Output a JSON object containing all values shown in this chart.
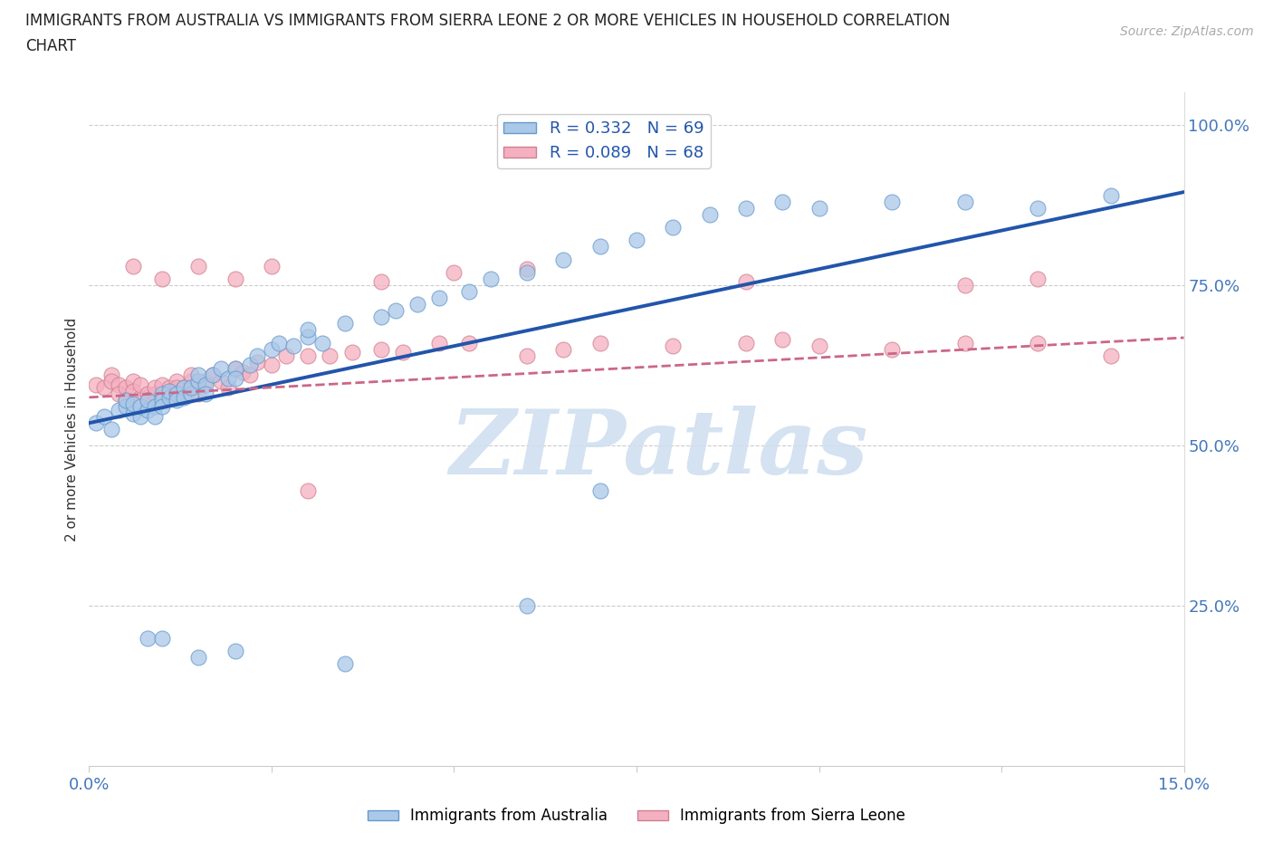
{
  "title_line1": "IMMIGRANTS FROM AUSTRALIA VS IMMIGRANTS FROM SIERRA LEONE 2 OR MORE VEHICLES IN HOUSEHOLD CORRELATION",
  "title_line2": "CHART",
  "source_text": "Source: ZipAtlas.com",
  "ylabel": "2 or more Vehicles in Household",
  "xlim": [
    0.0,
    0.15
  ],
  "ylim": [
    0.0,
    1.05
  ],
  "xticks": [
    0.0,
    0.025,
    0.05,
    0.075,
    0.1,
    0.125,
    0.15
  ],
  "xticklabels": [
    "0.0%",
    "",
    "",
    "",
    "",
    "",
    "15.0%"
  ],
  "yticks_right": [
    0.25,
    0.5,
    0.75,
    1.0
  ],
  "ytickslabels_right": [
    "25.0%",
    "50.0%",
    "75.0%",
    "100.0%"
  ],
  "australia_color": "#aac8e8",
  "australia_edge": "#6699cc",
  "sierraleone_color": "#f4afc0",
  "sierraleone_edge": "#d08090",
  "australia_line_color": "#2255aa",
  "sierraleone_line_color": "#cc6688",
  "watermark": "ZIPatlas",
  "watermark_color": "#d0dff0",
  "grid_color": "#cccccc",
  "background_color": "#ffffff",
  "legend_R_aus": "R = 0.332",
  "legend_N_aus": "N = 69",
  "legend_R_sl": "R = 0.089",
  "legend_N_sl": "N = 68",
  "aus_line_x0": 0.0,
  "aus_line_y0": 0.535,
  "aus_line_x1": 0.15,
  "aus_line_y1": 0.895,
  "sl_line_x0": 0.0,
  "sl_line_y0": 0.575,
  "sl_line_x1": 0.15,
  "sl_line_y1": 0.668,
  "australia_x": [
    0.001,
    0.002,
    0.003,
    0.004,
    0.005,
    0.005,
    0.006,
    0.006,
    0.007,
    0.007,
    0.008,
    0.008,
    0.009,
    0.009,
    0.01,
    0.01,
    0.01,
    0.011,
    0.011,
    0.012,
    0.012,
    0.013,
    0.013,
    0.014,
    0.014,
    0.015,
    0.015,
    0.016,
    0.016,
    0.017,
    0.018,
    0.019,
    0.02,
    0.02,
    0.022,
    0.023,
    0.025,
    0.026,
    0.028,
    0.03,
    0.03,
    0.032,
    0.035,
    0.04,
    0.042,
    0.045,
    0.048,
    0.052,
    0.055,
    0.06,
    0.065,
    0.07,
    0.075,
    0.08,
    0.085,
    0.09,
    0.095,
    0.1,
    0.11,
    0.12,
    0.13,
    0.14,
    0.008,
    0.01,
    0.015,
    0.02,
    0.035,
    0.06,
    0.07
  ],
  "australia_y": [
    0.535,
    0.545,
    0.525,
    0.555,
    0.56,
    0.57,
    0.55,
    0.565,
    0.545,
    0.56,
    0.555,
    0.57,
    0.56,
    0.545,
    0.58,
    0.57,
    0.56,
    0.575,
    0.585,
    0.58,
    0.57,
    0.59,
    0.575,
    0.58,
    0.59,
    0.6,
    0.61,
    0.595,
    0.58,
    0.61,
    0.62,
    0.605,
    0.62,
    0.605,
    0.625,
    0.64,
    0.65,
    0.66,
    0.655,
    0.67,
    0.68,
    0.66,
    0.69,
    0.7,
    0.71,
    0.72,
    0.73,
    0.74,
    0.76,
    0.77,
    0.79,
    0.81,
    0.82,
    0.84,
    0.86,
    0.87,
    0.88,
    0.87,
    0.88,
    0.88,
    0.87,
    0.89,
    0.2,
    0.2,
    0.17,
    0.18,
    0.16,
    0.25,
    0.43
  ],
  "sierraleone_x": [
    0.001,
    0.002,
    0.003,
    0.003,
    0.004,
    0.004,
    0.005,
    0.005,
    0.006,
    0.006,
    0.007,
    0.007,
    0.008,
    0.008,
    0.009,
    0.009,
    0.01,
    0.01,
    0.011,
    0.011,
    0.012,
    0.012,
    0.013,
    0.013,
    0.014,
    0.014,
    0.015,
    0.015,
    0.016,
    0.017,
    0.018,
    0.019,
    0.02,
    0.021,
    0.022,
    0.023,
    0.025,
    0.027,
    0.03,
    0.033,
    0.036,
    0.04,
    0.043,
    0.048,
    0.052,
    0.06,
    0.065,
    0.07,
    0.08,
    0.09,
    0.095,
    0.1,
    0.11,
    0.12,
    0.13,
    0.006,
    0.01,
    0.015,
    0.02,
    0.025,
    0.04,
    0.05,
    0.06,
    0.09,
    0.12,
    0.13,
    0.14,
    0.03
  ],
  "sierraleone_y": [
    0.595,
    0.59,
    0.61,
    0.6,
    0.595,
    0.58,
    0.59,
    0.57,
    0.6,
    0.585,
    0.575,
    0.595,
    0.58,
    0.57,
    0.58,
    0.59,
    0.575,
    0.595,
    0.59,
    0.58,
    0.6,
    0.59,
    0.58,
    0.59,
    0.6,
    0.61,
    0.595,
    0.58,
    0.6,
    0.61,
    0.6,
    0.59,
    0.62,
    0.615,
    0.61,
    0.63,
    0.625,
    0.64,
    0.64,
    0.64,
    0.645,
    0.65,
    0.645,
    0.66,
    0.66,
    0.64,
    0.65,
    0.66,
    0.655,
    0.66,
    0.665,
    0.655,
    0.65,
    0.66,
    0.66,
    0.78,
    0.76,
    0.78,
    0.76,
    0.78,
    0.755,
    0.77,
    0.775,
    0.755,
    0.75,
    0.76,
    0.64,
    0.43
  ]
}
